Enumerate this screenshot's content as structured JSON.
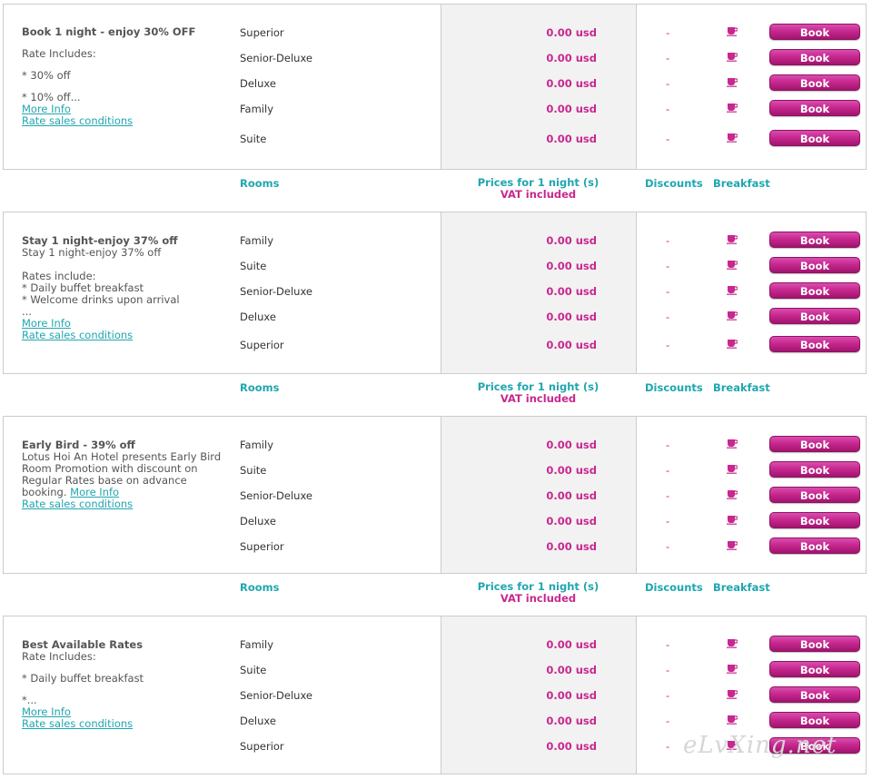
{
  "headers": {
    "rooms": "Rooms",
    "prices": "Prices for 1 night (s)",
    "vat": "VAT included",
    "discounts": "Discounts",
    "breakfast": "Breakfast"
  },
  "rates": [
    {
      "title": "Book 1 night - enjoy 30% OFF",
      "lines": [
        "Rate Includes:",
        "* 30% off",
        "* 10% off..."
      ],
      "more_info": "More Info",
      "conditions": "Rate sales conditions",
      "rooms": [
        {
          "name": "Superior",
          "price": "0.00 usd",
          "discount": "-",
          "book": "Book"
        },
        {
          "name": "Senior-Deluxe",
          "price": "0.00 usd",
          "discount": "-",
          "book": "Book"
        },
        {
          "name": "Deluxe",
          "price": "0.00 usd",
          "discount": "-",
          "book": "Book"
        },
        {
          "name": "Family",
          "price": "0.00 usd",
          "discount": "-",
          "book": "Book"
        },
        {
          "name": "Suite",
          "price": "0.00 usd",
          "discount": "-",
          "book": "Book"
        }
      ]
    },
    {
      "title": "Stay 1 night-enjoy 37% off",
      "lines": [
        "Stay 1 night-enjoy 37% off",
        "Rates include:",
        "* Daily buffet breakfast",
        "* Welcome drinks upon arrival",
        "..."
      ],
      "more_info": "More Info",
      "conditions": "Rate sales conditions",
      "rooms": [
        {
          "name": "Family",
          "price": "0.00 usd",
          "discount": "-",
          "book": "Book"
        },
        {
          "name": "Suite",
          "price": "0.00 usd",
          "discount": "-",
          "book": "Book"
        },
        {
          "name": "Senior-Deluxe",
          "price": "0.00 usd",
          "discount": "-",
          "book": "Book"
        },
        {
          "name": "Deluxe",
          "price": "0.00 usd",
          "discount": "-",
          "book": "Book"
        },
        {
          "name": "Superior",
          "price": "0.00 usd",
          "discount": "-",
          "book": "Book"
        }
      ]
    },
    {
      "title": "Early Bird - 39% off",
      "lines": [
        "Lotus Hoi An Hotel presents Early Bird Room Promotion with discount on Regular Rates base on advance booking."
      ],
      "more_info": "More Info",
      "conditions": "Rate sales conditions",
      "rooms": [
        {
          "name": "Family",
          "price": "0.00 usd",
          "discount": "-",
          "book": "Book"
        },
        {
          "name": "Suite",
          "price": "0.00 usd",
          "discount": "-",
          "book": "Book"
        },
        {
          "name": "Senior-Deluxe",
          "price": "0.00 usd",
          "discount": "-",
          "book": "Book"
        },
        {
          "name": "Deluxe",
          "price": "0.00 usd",
          "discount": "-",
          "book": "Book"
        },
        {
          "name": "Superior",
          "price": "0.00 usd",
          "discount": "-",
          "book": "Book"
        }
      ]
    },
    {
      "title": "Best Available Rates",
      "lines": [
        "Rate Includes:",
        "* Daily buffet breakfast",
        "*..."
      ],
      "more_info": "More Info",
      "conditions": "Rate sales conditions",
      "rooms": [
        {
          "name": "Family",
          "price": "0.00 usd",
          "discount": "-",
          "book": "Book"
        },
        {
          "name": "Suite",
          "price": "0.00 usd",
          "discount": "-",
          "book": "Book"
        },
        {
          "name": "Senior-Deluxe",
          "price": "0.00 usd",
          "discount": "-",
          "book": "Book"
        },
        {
          "name": "Deluxe",
          "price": "0.00 usd",
          "discount": "-",
          "book": "Book"
        },
        {
          "name": "Superior",
          "price": "0.00 usd",
          "discount": "-",
          "book": "Book"
        }
      ]
    }
  ],
  "watermark": "eLvXing.net",
  "colors": {
    "accent": "#c8288f",
    "link": "#1fa6b0",
    "price_bg": "#f2f2f2"
  }
}
